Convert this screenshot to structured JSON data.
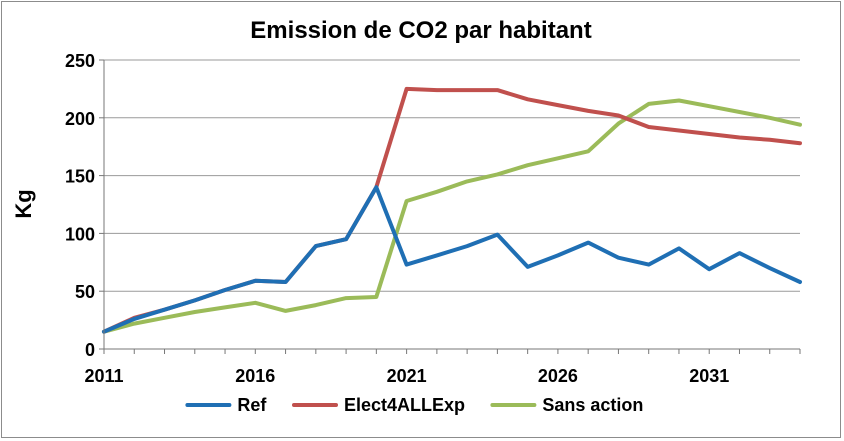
{
  "chart_data": {
    "type": "line",
    "title": "Emission de CO2 par habitant",
    "xlabel": "",
    "ylabel": "Kg",
    "x": [
      2011,
      2012,
      2013,
      2014,
      2015,
      2016,
      2017,
      2018,
      2019,
      2020,
      2021,
      2022,
      2023,
      2024,
      2025,
      2026,
      2027,
      2028,
      2029,
      2030,
      2031,
      2032,
      2033,
      2034
    ],
    "xlim": [
      2011,
      2034
    ],
    "x_ticks": [
      "2011",
      "2016",
      "2021",
      "2026",
      "2031"
    ],
    "ylim": [
      0,
      250
    ],
    "y_ticks": [
      "0",
      "50",
      "100",
      "150",
      "200",
      "250"
    ],
    "grid": true,
    "legend": "bottom",
    "series": [
      {
        "name": "Ref",
        "color": "#1f6fb4",
        "values": [
          15,
          26,
          34,
          42,
          51,
          59,
          58,
          89,
          95,
          140,
          73,
          81,
          89,
          99,
          71,
          81,
          92,
          79,
          73,
          87,
          69,
          83,
          70,
          58
        ]
      },
      {
        "name": "Elect4ALLExp",
        "color": "#c0504d",
        "values": [
          15,
          27,
          34,
          42,
          51,
          59,
          58,
          89,
          95,
          140,
          225,
          224,
          224,
          224,
          216,
          211,
          206,
          202,
          192,
          189,
          186,
          183,
          181,
          178
        ]
      },
      {
        "name": "Sans action",
        "color": "#9bbb59",
        "values": [
          15,
          22,
          27,
          32,
          36,
          40,
          33,
          38,
          44,
          45,
          128,
          136,
          145,
          151,
          159,
          165,
          171,
          195,
          212,
          215,
          210,
          205,
          200,
          194
        ]
      }
    ]
  }
}
